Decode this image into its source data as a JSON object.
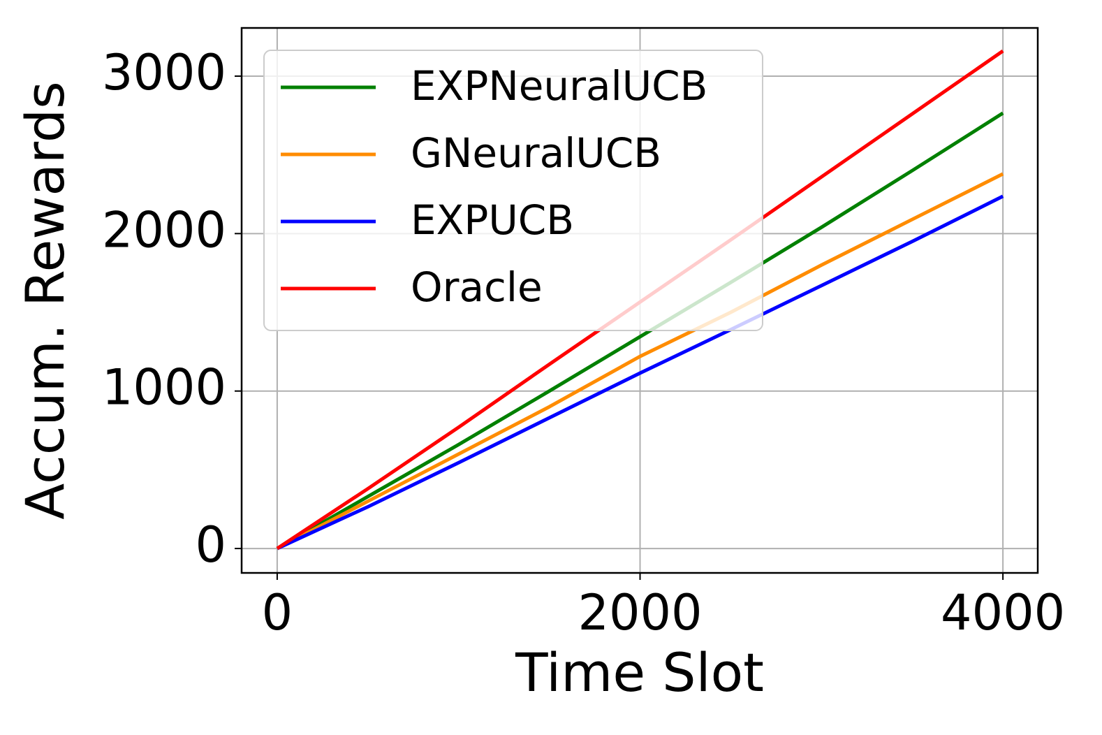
{
  "chart_data": {
    "type": "line",
    "xlabel": "Time Slot",
    "ylabel": "Accum. Rewards",
    "x": [
      0,
      500,
      1000,
      1500,
      2000,
      2500,
      3000,
      3500,
      4000
    ],
    "series": [
      {
        "name": "EXPNeuralUCB",
        "color": "#008000",
        "values": [
          0,
          330,
          660,
          1000,
          1345,
          1690,
          2040,
          2400,
          2765
        ]
      },
      {
        "name": "GNeuralUCB",
        "color": "#ff8c00",
        "values": [
          0,
          300,
          600,
          900,
          1220,
          1500,
          1800,
          2090,
          2379
        ]
      },
      {
        "name": "EXPUCB",
        "color": "#0000ff",
        "values": [
          0,
          265,
          545,
          830,
          1114,
          1390,
          1670,
          1950,
          2237
        ]
      },
      {
        "name": "Oracle",
        "color": "#ff0000",
        "values": [
          0,
          380,
          770,
          1170,
          1565,
          1960,
          2360,
          2760,
          3160
        ]
      }
    ],
    "xlim": [
      -196,
      4192
    ],
    "ylim": [
      -155,
      3306
    ],
    "xticks": [
      0,
      2000,
      4000
    ],
    "yticks": [
      0,
      1000,
      2000,
      3000
    ],
    "grid": true,
    "legend": "upper left"
  }
}
